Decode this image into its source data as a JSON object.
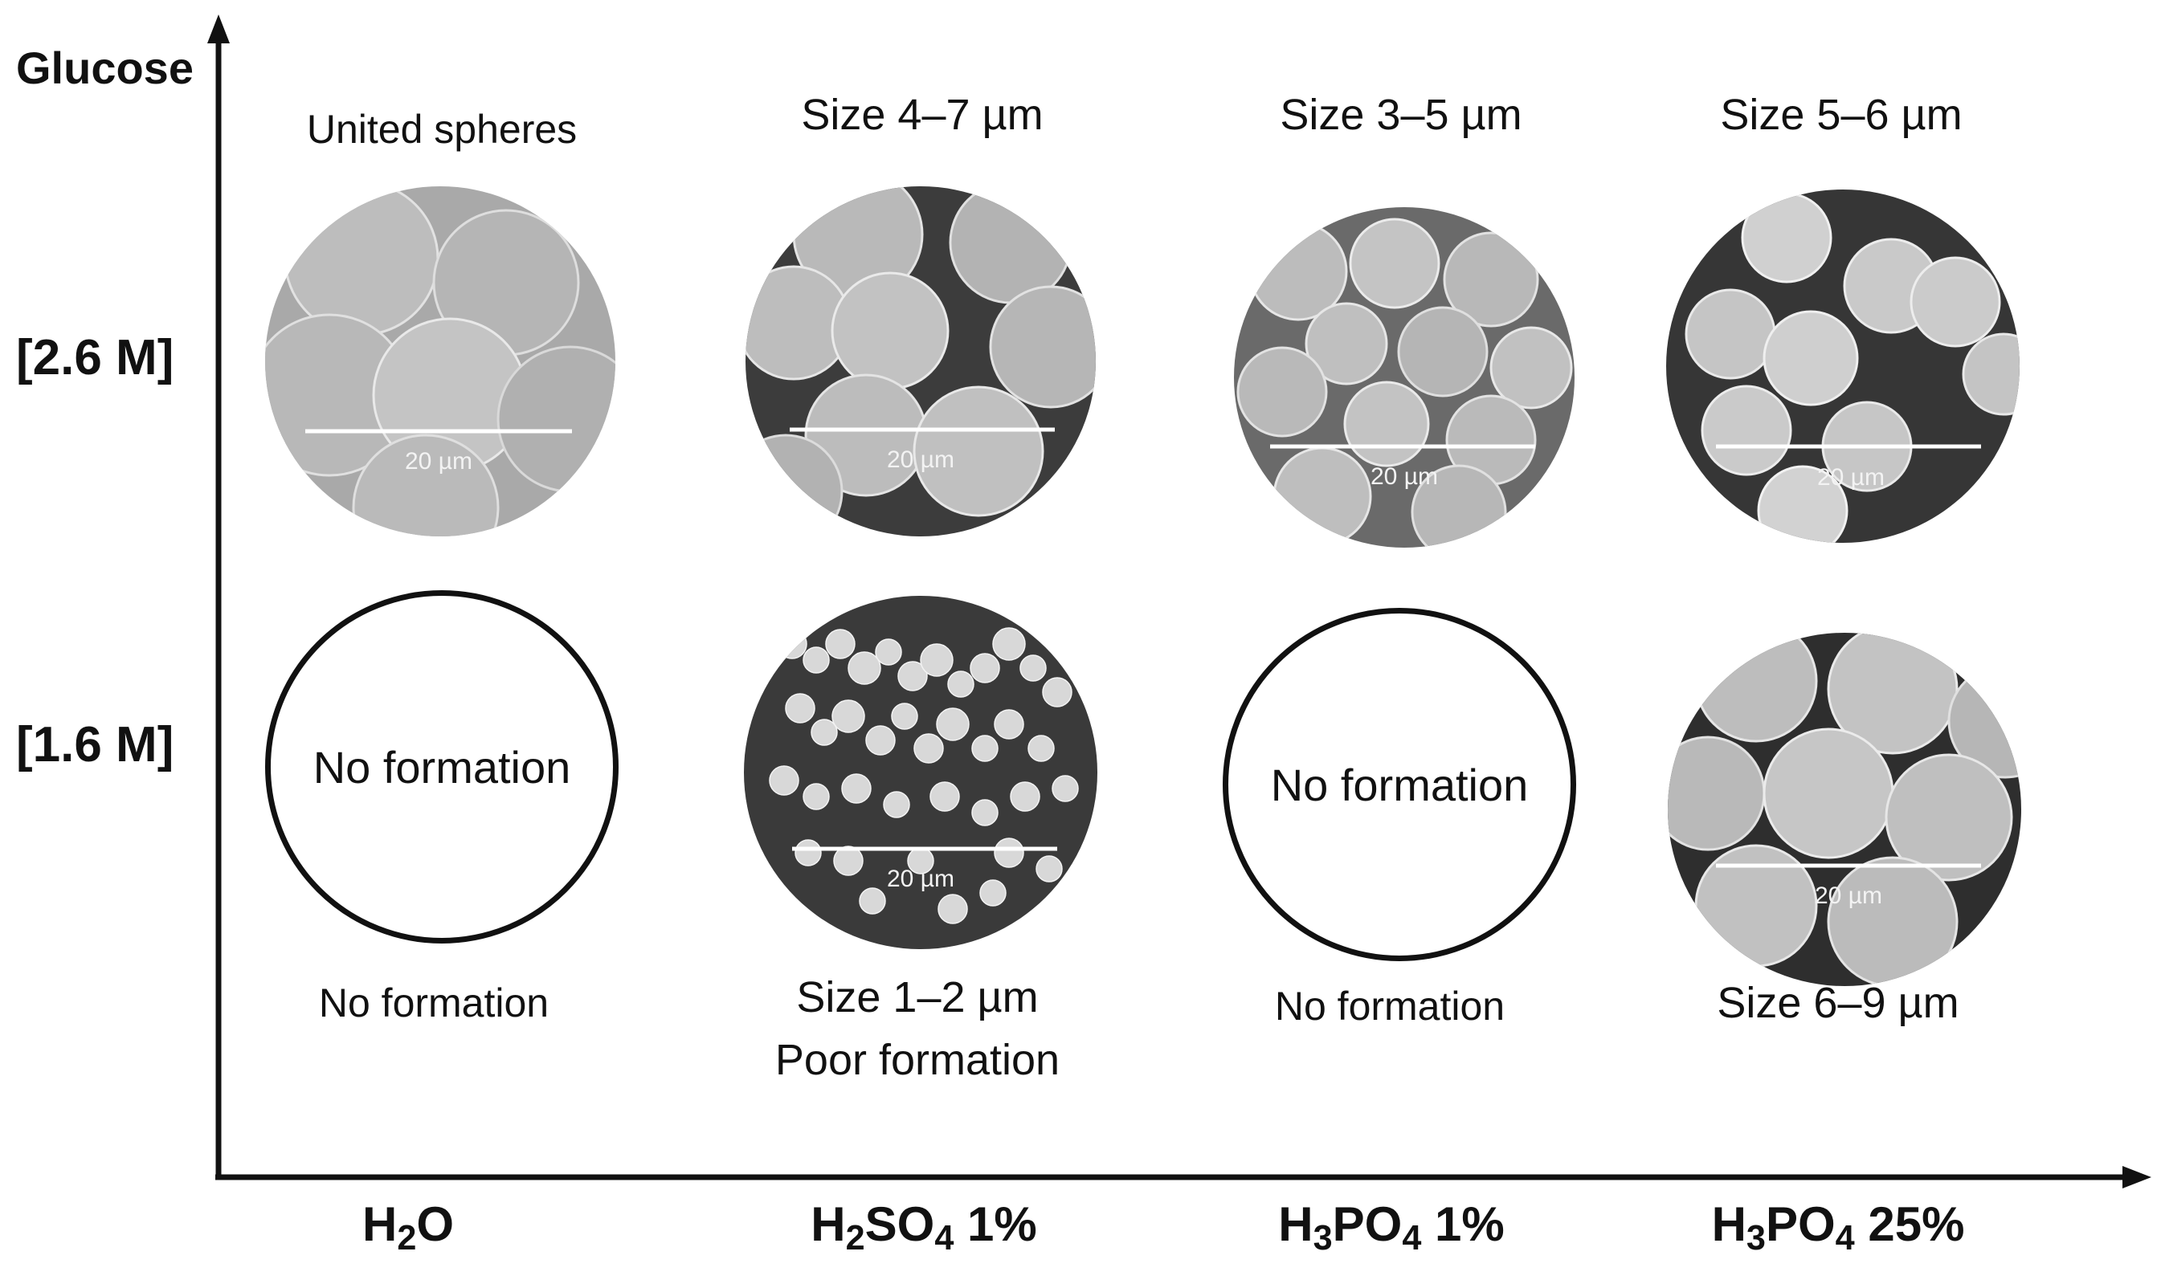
{
  "y_axis_title": "Glucose",
  "rows": [
    {
      "label": "[2.6 M]"
    },
    {
      "label": "[1.6 M]"
    }
  ],
  "columns": [
    {
      "base": "H",
      "sub1": "2",
      "mid": "O",
      "sub2": "",
      "tail": ""
    },
    {
      "base": "H",
      "sub1": "2",
      "mid": "SO",
      "sub2": "4",
      "tail": " 1%"
    },
    {
      "base": "H",
      "sub1": "3",
      "mid": "PO",
      "sub2": "4",
      "tail": " 1%"
    },
    {
      "base": "H",
      "sub1": "3",
      "mid": "PO",
      "sub2": "4",
      "tail": " 25%"
    }
  ],
  "cells": {
    "r1c1": {
      "caption": "United spheres",
      "scale": "20 µm"
    },
    "r1c2": {
      "caption": "Size 4–7 µm",
      "scale": "20 µm"
    },
    "r1c3": {
      "caption": "Size 3–5 µm",
      "scale": "20 µm"
    },
    "r1c4": {
      "caption": "Size 5–6 µm",
      "scale": "20 µm"
    },
    "r2c1": {
      "inner": "No formation",
      "caption": "No formation"
    },
    "r2c2": {
      "caption_line1": "Size 1–2 µm",
      "caption_line2": "Poor formation",
      "scale": "20 µm"
    },
    "r2c3": {
      "inner": "No formation",
      "caption": "No formation"
    },
    "r2c4": {
      "caption": "Size 6–9 µm",
      "scale": "20 µm"
    }
  },
  "colors": {
    "axis": "#111111",
    "sem_background": "#4a4a4a",
    "sphere": "#c9c9c9",
    "scale_bar": "#ffffff"
  }
}
